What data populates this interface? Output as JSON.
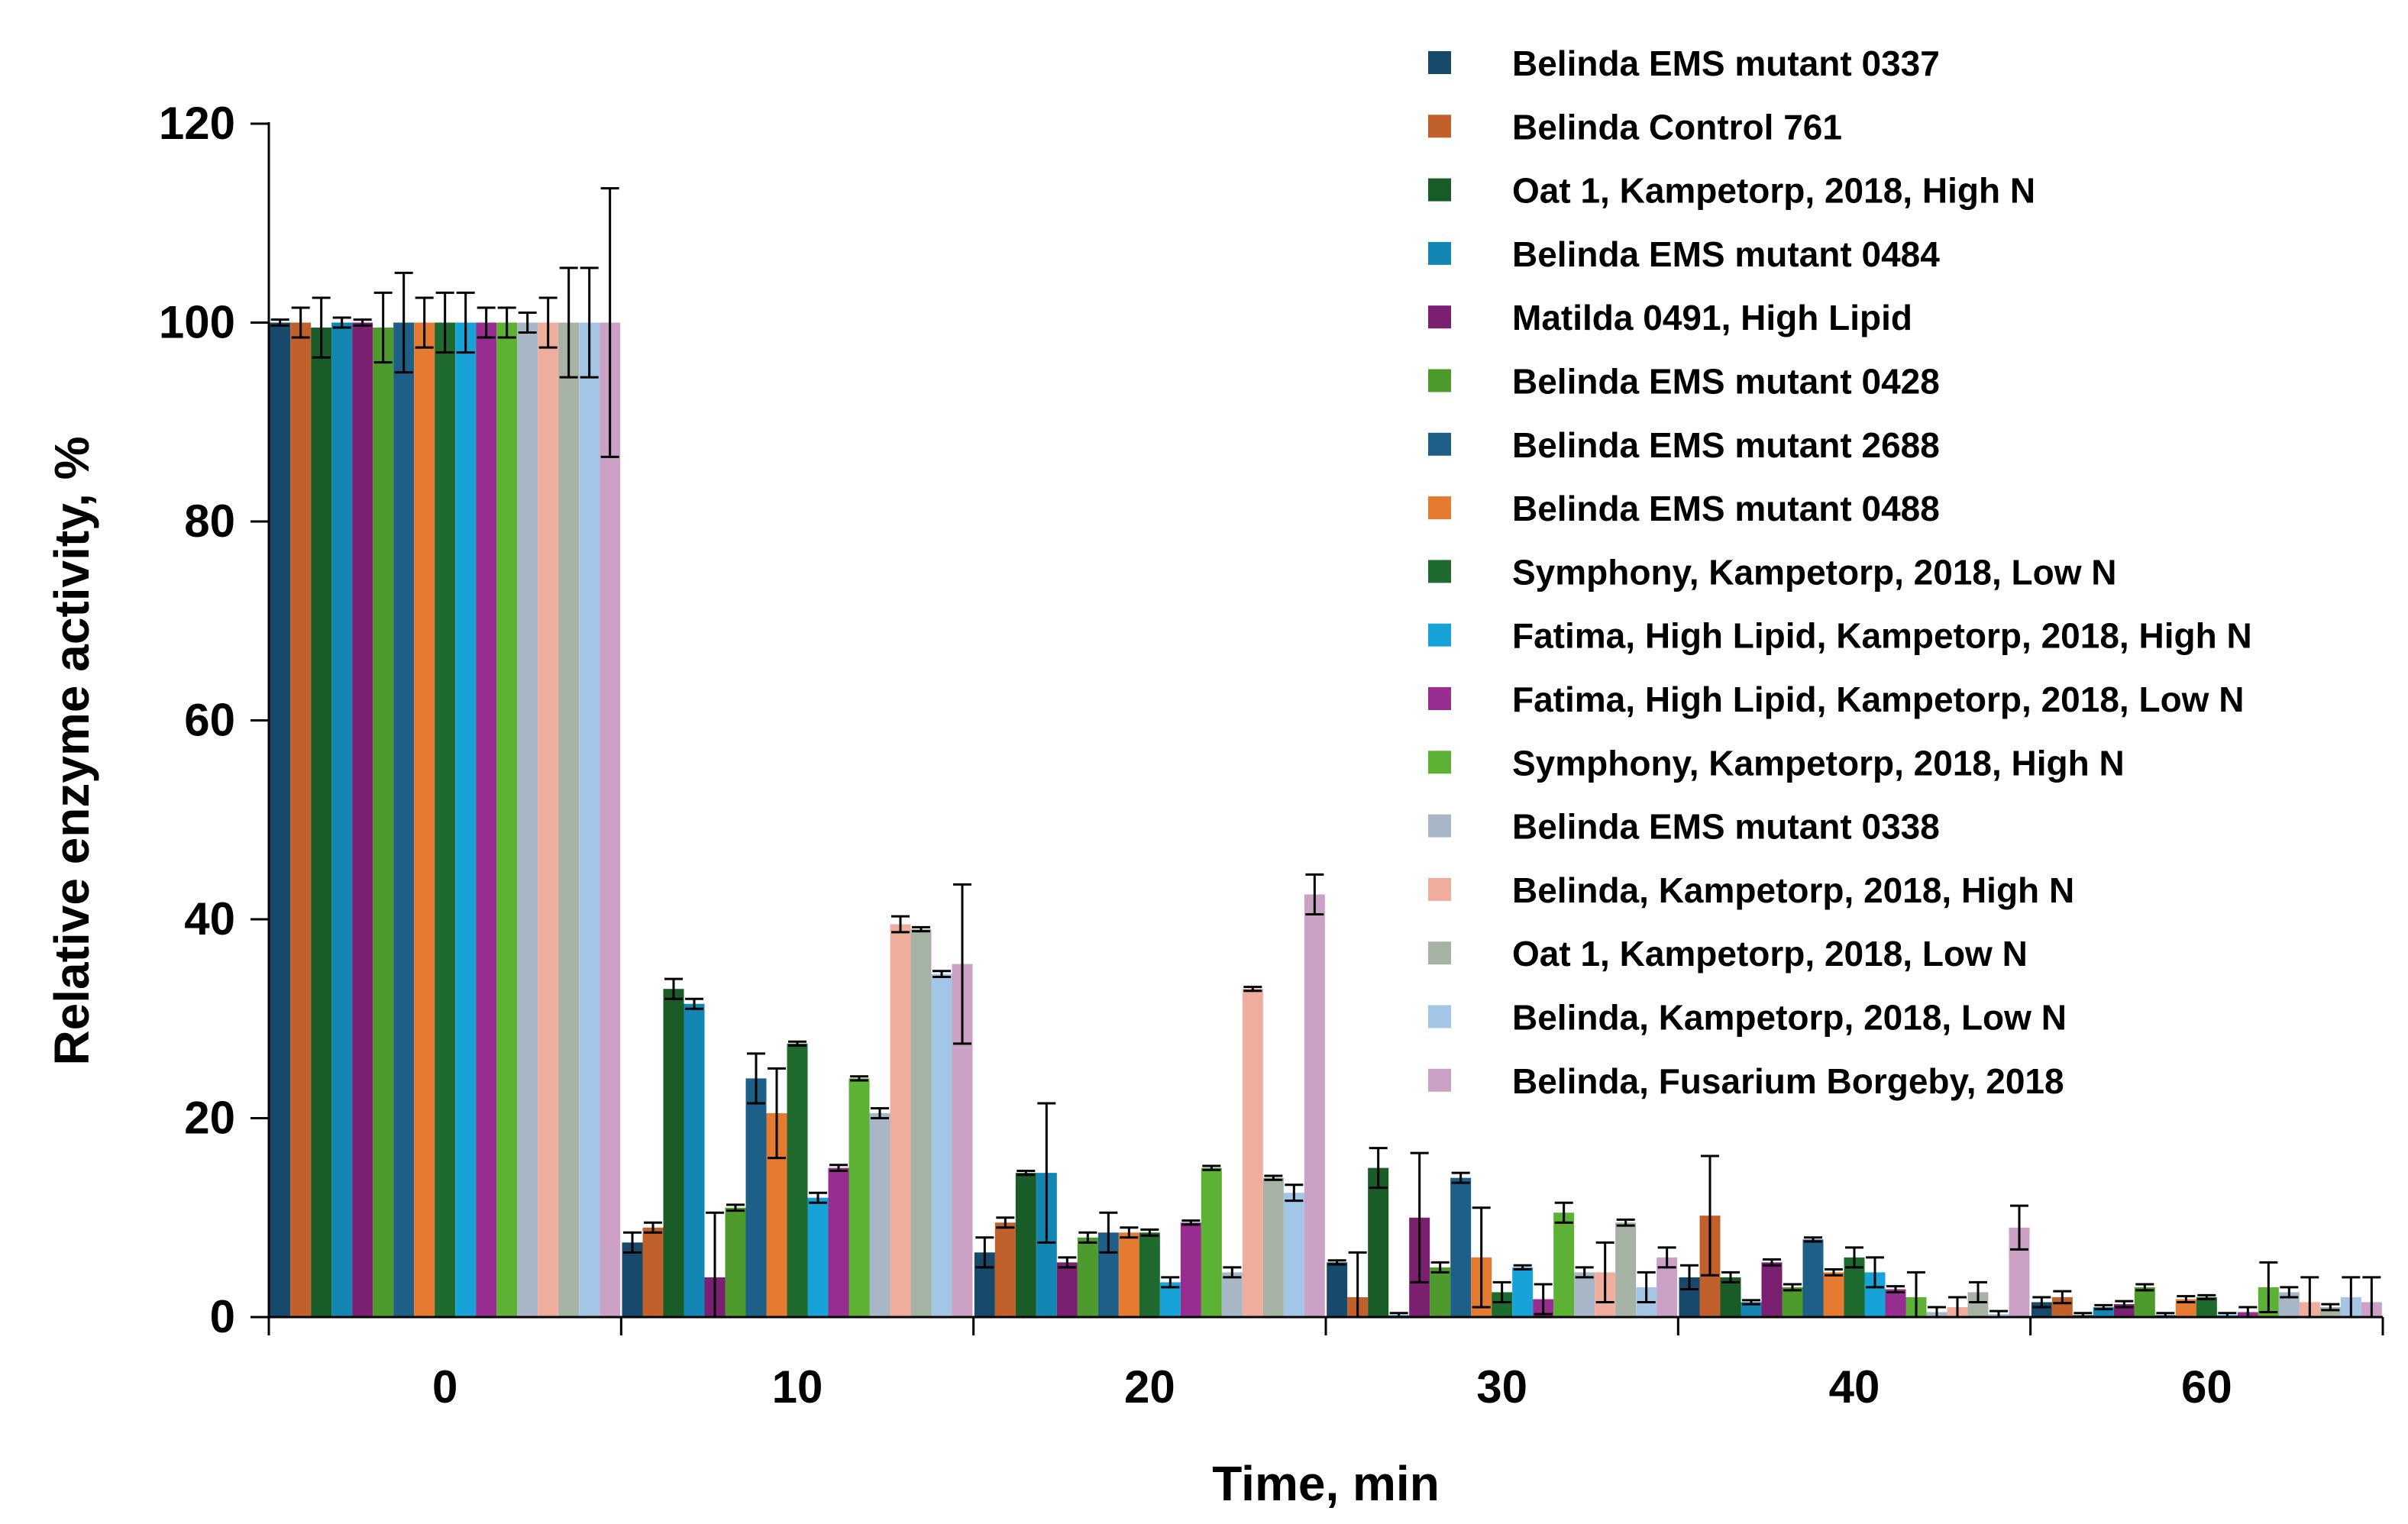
{
  "chart_data": {
    "type": "bar",
    "title": "",
    "xlabel": "Time, min",
    "ylabel": "Relative enzyme activity, %",
    "ylim": [
      0,
      120
    ],
    "yticks": [
      0,
      20,
      40,
      60,
      80,
      100,
      120
    ],
    "grid": false,
    "legend_position": "top-right",
    "categories": [
      "0",
      "10",
      "20",
      "30",
      "40",
      "60"
    ],
    "series": [
      {
        "name": "Belinda EMS mutant 0337",
        "color": "#17496B",
        "values": [
          100,
          7.5,
          6.5,
          5.5,
          4.0,
          1.5
        ],
        "errors": [
          0.3,
          1.0,
          1.5,
          0.2,
          1.2,
          0.5
        ]
      },
      {
        "name": "Belinda Control 761",
        "color": "#C0602A",
        "values": [
          100,
          9.0,
          9.5,
          2.0,
          10.2,
          2.0
        ],
        "errors": [
          1.5,
          0.5,
          0.5,
          4.5,
          6.0,
          0.6
        ]
      },
      {
        "name": "Oat 1, Kampetorp, 2018, High N",
        "color": "#1A5C28",
        "values": [
          99.5,
          33.0,
          14.5,
          15.0,
          4.0,
          0.2
        ],
        "errors": [
          3.0,
          1.0,
          0.2,
          2.0,
          0.5,
          0.2
        ]
      },
      {
        "name": "Belinda EMS mutant 0484",
        "color": "#1486B3",
        "values": [
          100,
          31.5,
          14.5,
          0.2,
          1.5,
          1.0
        ],
        "errors": [
          0.5,
          0.5,
          7.0,
          0.2,
          0.2,
          0.2
        ]
      },
      {
        "name": "Matilda 0491, High Lipid",
        "color": "#7B2070",
        "values": [
          100,
          4.0,
          5.5,
          10.0,
          5.5,
          1.3
        ],
        "errors": [
          0.3,
          6.5,
          0.5,
          6.5,
          0.3,
          0.3
        ]
      },
      {
        "name": "Belinda EMS mutant 0428",
        "color": "#4F9A2C",
        "values": [
          99.5,
          11.0,
          8.0,
          5.0,
          3.0,
          3.0
        ],
        "errors": [
          3.5,
          0.3,
          0.5,
          0.5,
          0.3,
          0.3
        ]
      },
      {
        "name": "Belinda EMS mutant 2688",
        "color": "#1D5F86",
        "values": [
          100,
          24.0,
          8.5,
          14.0,
          7.8,
          0.2
        ],
        "errors": [
          5.0,
          2.5,
          2.0,
          0.5,
          0.2,
          0.2
        ]
      },
      {
        "name": "Belinda EMS mutant 0488",
        "color": "#E57A31",
        "values": [
          100,
          20.5,
          8.5,
          6.0,
          4.5,
          1.8
        ],
        "errors": [
          2.5,
          4.5,
          0.5,
          5.0,
          0.3,
          0.3
        ]
      },
      {
        "name": "Symphony, Kampetorp, 2018, Low N",
        "color": "#1F6B2F",
        "values": [
          100,
          27.5,
          8.5,
          2.5,
          6.0,
          2.0
        ],
        "errors": [
          3.0,
          0.2,
          0.3,
          1.0,
          1.0,
          0.2
        ]
      },
      {
        "name": "Fatima, High Lipid, Kampetorp, 2018, High N",
        "color": "#17A2D8",
        "values": [
          100,
          12.0,
          3.5,
          5.0,
          4.5,
          0.2
        ],
        "errors": [
          3.0,
          0.5,
          0.5,
          0.2,
          1.5,
          0.2
        ]
      },
      {
        "name": "Fatima, High Lipid, Kampetorp, 2018, Low N",
        "color": "#972E8F",
        "values": [
          100,
          15.0,
          9.5,
          1.8,
          2.8,
          0.5
        ],
        "errors": [
          1.5,
          0.3,
          0.2,
          1.5,
          0.3,
          0.5
        ]
      },
      {
        "name": "Symphony, Kampetorp, 2018, High N",
        "color": "#5DB236",
        "values": [
          100,
          24.0,
          15.0,
          10.5,
          2.0,
          3.0
        ],
        "errors": [
          1.5,
          0.2,
          0.2,
          1.0,
          2.5,
          2.5
        ]
      },
      {
        "name": "Belinda EMS mutant 0338",
        "color": "#A8B7C8",
        "values": [
          100,
          20.5,
          4.5,
          4.5,
          0.5,
          2.5
        ],
        "errors": [
          1.0,
          0.5,
          0.5,
          0.5,
          0.5,
          0.5
        ]
      },
      {
        "name": "Belinda, Kampetorp, 2018, High N",
        "color": "#EFAE9D",
        "values": [
          100,
          39.5,
          33.0,
          4.5,
          1.0,
          1.5
        ],
        "errors": [
          2.5,
          0.8,
          0.2,
          3.0,
          1.0,
          2.5
        ]
      },
      {
        "name": "Oat 1, Kampetorp, 2018, Low N",
        "color": "#A6B2A4",
        "values": [
          100,
          39.0,
          14.0,
          9.5,
          2.5,
          1.0
        ],
        "errors": [
          5.5,
          0.2,
          0.2,
          0.3,
          1.0,
          0.3
        ]
      },
      {
        "name": "Belinda, Kampetorp, 2018, Low N",
        "color": "#A4C6E6",
        "values": [
          100,
          34.5,
          12.5,
          3.0,
          0.3,
          2.0
        ],
        "errors": [
          5.5,
          0.3,
          0.8,
          1.5,
          0.3,
          2.0
        ]
      },
      {
        "name": "Belinda, Fusarium Borgeby, 2018",
        "color": "#CBA1C6",
        "values": [
          100,
          35.5,
          42.5,
          6.0,
          9.0,
          1.5
        ],
        "errors": [
          13.5,
          8.0,
          2.0,
          1.0,
          2.2,
          2.5
        ]
      }
    ]
  }
}
